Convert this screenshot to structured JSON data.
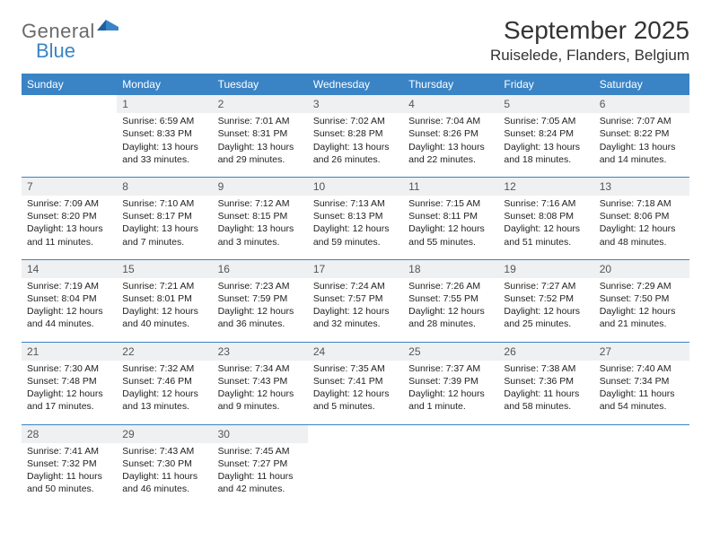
{
  "logo": {
    "word1": "General",
    "word2": "Blue"
  },
  "header": {
    "title": "September 2025",
    "location": "Ruiselede, Flanders, Belgium"
  },
  "colors": {
    "header_bar": "#3a84c6",
    "header_text": "#ffffff",
    "daynum_bg": "#eef0f2",
    "text": "#222222",
    "logo_gray": "#6a6a6a",
    "logo_blue": "#3a84c6"
  },
  "day_names": [
    "Sunday",
    "Monday",
    "Tuesday",
    "Wednesday",
    "Thursday",
    "Friday",
    "Saturday"
  ],
  "weeks": [
    [
      {
        "day": "",
        "lines": []
      },
      {
        "day": "1",
        "lines": [
          "Sunrise: 6:59 AM",
          "Sunset: 8:33 PM",
          "Daylight: 13 hours and 33 minutes."
        ]
      },
      {
        "day": "2",
        "lines": [
          "Sunrise: 7:01 AM",
          "Sunset: 8:31 PM",
          "Daylight: 13 hours and 29 minutes."
        ]
      },
      {
        "day": "3",
        "lines": [
          "Sunrise: 7:02 AM",
          "Sunset: 8:28 PM",
          "Daylight: 13 hours and 26 minutes."
        ]
      },
      {
        "day": "4",
        "lines": [
          "Sunrise: 7:04 AM",
          "Sunset: 8:26 PM",
          "Daylight: 13 hours and 22 minutes."
        ]
      },
      {
        "day": "5",
        "lines": [
          "Sunrise: 7:05 AM",
          "Sunset: 8:24 PM",
          "Daylight: 13 hours and 18 minutes."
        ]
      },
      {
        "day": "6",
        "lines": [
          "Sunrise: 7:07 AM",
          "Sunset: 8:22 PM",
          "Daylight: 13 hours and 14 minutes."
        ]
      }
    ],
    [
      {
        "day": "7",
        "lines": [
          "Sunrise: 7:09 AM",
          "Sunset: 8:20 PM",
          "Daylight: 13 hours and 11 minutes."
        ]
      },
      {
        "day": "8",
        "lines": [
          "Sunrise: 7:10 AM",
          "Sunset: 8:17 PM",
          "Daylight: 13 hours and 7 minutes."
        ]
      },
      {
        "day": "9",
        "lines": [
          "Sunrise: 7:12 AM",
          "Sunset: 8:15 PM",
          "Daylight: 13 hours and 3 minutes."
        ]
      },
      {
        "day": "10",
        "lines": [
          "Sunrise: 7:13 AM",
          "Sunset: 8:13 PM",
          "Daylight: 12 hours and 59 minutes."
        ]
      },
      {
        "day": "11",
        "lines": [
          "Sunrise: 7:15 AM",
          "Sunset: 8:11 PM",
          "Daylight: 12 hours and 55 minutes."
        ]
      },
      {
        "day": "12",
        "lines": [
          "Sunrise: 7:16 AM",
          "Sunset: 8:08 PM",
          "Daylight: 12 hours and 51 minutes."
        ]
      },
      {
        "day": "13",
        "lines": [
          "Sunrise: 7:18 AM",
          "Sunset: 8:06 PM",
          "Daylight: 12 hours and 48 minutes."
        ]
      }
    ],
    [
      {
        "day": "14",
        "lines": [
          "Sunrise: 7:19 AM",
          "Sunset: 8:04 PM",
          "Daylight: 12 hours and 44 minutes."
        ]
      },
      {
        "day": "15",
        "lines": [
          "Sunrise: 7:21 AM",
          "Sunset: 8:01 PM",
          "Daylight: 12 hours and 40 minutes."
        ]
      },
      {
        "day": "16",
        "lines": [
          "Sunrise: 7:23 AM",
          "Sunset: 7:59 PM",
          "Daylight: 12 hours and 36 minutes."
        ]
      },
      {
        "day": "17",
        "lines": [
          "Sunrise: 7:24 AM",
          "Sunset: 7:57 PM",
          "Daylight: 12 hours and 32 minutes."
        ]
      },
      {
        "day": "18",
        "lines": [
          "Sunrise: 7:26 AM",
          "Sunset: 7:55 PM",
          "Daylight: 12 hours and 28 minutes."
        ]
      },
      {
        "day": "19",
        "lines": [
          "Sunrise: 7:27 AM",
          "Sunset: 7:52 PM",
          "Daylight: 12 hours and 25 minutes."
        ]
      },
      {
        "day": "20",
        "lines": [
          "Sunrise: 7:29 AM",
          "Sunset: 7:50 PM",
          "Daylight: 12 hours and 21 minutes."
        ]
      }
    ],
    [
      {
        "day": "21",
        "lines": [
          "Sunrise: 7:30 AM",
          "Sunset: 7:48 PM",
          "Daylight: 12 hours and 17 minutes."
        ]
      },
      {
        "day": "22",
        "lines": [
          "Sunrise: 7:32 AM",
          "Sunset: 7:46 PM",
          "Daylight: 12 hours and 13 minutes."
        ]
      },
      {
        "day": "23",
        "lines": [
          "Sunrise: 7:34 AM",
          "Sunset: 7:43 PM",
          "Daylight: 12 hours and 9 minutes."
        ]
      },
      {
        "day": "24",
        "lines": [
          "Sunrise: 7:35 AM",
          "Sunset: 7:41 PM",
          "Daylight: 12 hours and 5 minutes."
        ]
      },
      {
        "day": "25",
        "lines": [
          "Sunrise: 7:37 AM",
          "Sunset: 7:39 PM",
          "Daylight: 12 hours and 1 minute."
        ]
      },
      {
        "day": "26",
        "lines": [
          "Sunrise: 7:38 AM",
          "Sunset: 7:36 PM",
          "Daylight: 11 hours and 58 minutes."
        ]
      },
      {
        "day": "27",
        "lines": [
          "Sunrise: 7:40 AM",
          "Sunset: 7:34 PM",
          "Daylight: 11 hours and 54 minutes."
        ]
      }
    ],
    [
      {
        "day": "28",
        "lines": [
          "Sunrise: 7:41 AM",
          "Sunset: 7:32 PM",
          "Daylight: 11 hours and 50 minutes."
        ]
      },
      {
        "day": "29",
        "lines": [
          "Sunrise: 7:43 AM",
          "Sunset: 7:30 PM",
          "Daylight: 11 hours and 46 minutes."
        ]
      },
      {
        "day": "30",
        "lines": [
          "Sunrise: 7:45 AM",
          "Sunset: 7:27 PM",
          "Daylight: 11 hours and 42 minutes."
        ]
      },
      {
        "day": "",
        "lines": []
      },
      {
        "day": "",
        "lines": []
      },
      {
        "day": "",
        "lines": []
      },
      {
        "day": "",
        "lines": []
      }
    ]
  ]
}
